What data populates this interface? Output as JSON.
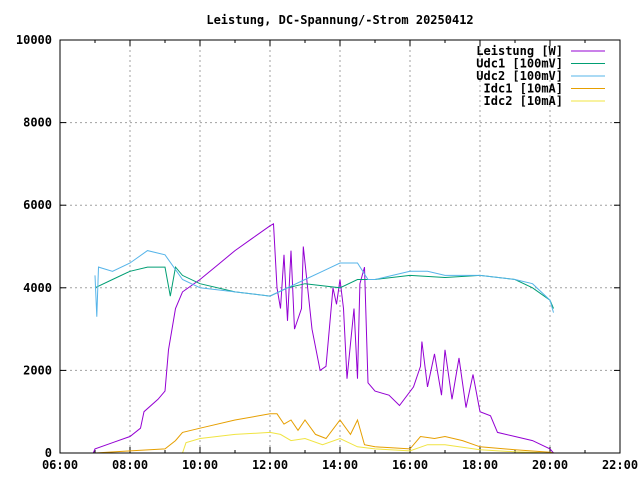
{
  "chart_data": {
    "type": "line",
    "title": "Leistung, DC-Spannung/-Strom 20250412",
    "xlabel": "",
    "ylabel": "",
    "xlim": [
      6,
      22
    ],
    "ylim": [
      0,
      10000
    ],
    "grid": true,
    "legend_position": "top-right",
    "x_ticks": [
      {
        "v": 6,
        "label": "06:00"
      },
      {
        "v": 8,
        "label": "08:00"
      },
      {
        "v": 10,
        "label": "10:00"
      },
      {
        "v": 12,
        "label": "12:00"
      },
      {
        "v": 14,
        "label": "14:00"
      },
      {
        "v": 16,
        "label": "16:00"
      },
      {
        "v": 18,
        "label": "18:00"
      },
      {
        "v": 20,
        "label": "20:00"
      },
      {
        "v": 22,
        "label": "22:00"
      }
    ],
    "y_ticks": [
      {
        "v": 0,
        "label": "0"
      },
      {
        "v": 2000,
        "label": "2000"
      },
      {
        "v": 4000,
        "label": "4000"
      },
      {
        "v": 6000,
        "label": "6000"
      },
      {
        "v": 8000,
        "label": "8000"
      },
      {
        "v": 10000,
        "label": "10000"
      }
    ],
    "series": [
      {
        "name": "Leistung [W]",
        "color": "#9400d3",
        "points": [
          [
            6.95,
            0
          ],
          [
            7.0,
            100
          ],
          [
            7.5,
            250
          ],
          [
            8.0,
            400
          ],
          [
            8.3,
            600
          ],
          [
            8.4,
            1000
          ],
          [
            8.8,
            1300
          ],
          [
            9.0,
            1500
          ],
          [
            9.1,
            2500
          ],
          [
            9.3,
            3500
          ],
          [
            9.5,
            3900
          ],
          [
            10,
            4200
          ],
          [
            10.5,
            4550
          ],
          [
            11,
            4900
          ],
          [
            11.5,
            5200
          ],
          [
            12,
            5500
          ],
          [
            12.1,
            5550
          ],
          [
            12.2,
            4000
          ],
          [
            12.3,
            3500
          ],
          [
            12.4,
            4800
          ],
          [
            12.5,
            3200
          ],
          [
            12.6,
            4900
          ],
          [
            12.7,
            3000
          ],
          [
            12.9,
            3500
          ],
          [
            12.95,
            5000
          ],
          [
            13.2,
            3000
          ],
          [
            13.43,
            2000
          ],
          [
            13.6,
            2100
          ],
          [
            13.8,
            4000
          ],
          [
            13.9,
            3600
          ],
          [
            14.0,
            4200
          ],
          [
            14.1,
            3500
          ],
          [
            14.2,
            1800
          ],
          [
            14.4,
            3500
          ],
          [
            14.5,
            1800
          ],
          [
            14.57,
            4100
          ],
          [
            14.7,
            4500
          ],
          [
            14.8,
            1700
          ],
          [
            15.0,
            1500
          ],
          [
            15.4,
            1400
          ],
          [
            15.7,
            1150
          ],
          [
            16.1,
            1600
          ],
          [
            16.3,
            2100
          ],
          [
            16.34,
            2700
          ],
          [
            16.5,
            1600
          ],
          [
            16.7,
            2400
          ],
          [
            16.9,
            1400
          ],
          [
            17.0,
            2500
          ],
          [
            17.2,
            1300
          ],
          [
            17.4,
            2300
          ],
          [
            17.6,
            1100
          ],
          [
            17.8,
            1900
          ],
          [
            18.0,
            1000
          ],
          [
            18.3,
            900
          ],
          [
            18.5,
            500
          ],
          [
            19,
            400
          ],
          [
            19.5,
            300
          ],
          [
            20,
            100
          ],
          [
            20.1,
            0
          ]
        ]
      },
      {
        "name": "Udc1 [100mV]",
        "color": "#009e73",
        "points": [
          [
            7.0,
            4000
          ],
          [
            7.5,
            4200
          ],
          [
            8,
            4400
          ],
          [
            8.5,
            4500
          ],
          [
            9,
            4500
          ],
          [
            9.15,
            3800
          ],
          [
            9.3,
            4500
          ],
          [
            9.5,
            4300
          ],
          [
            10,
            4100
          ],
          [
            11,
            3900
          ],
          [
            12,
            3800
          ],
          [
            12.5,
            4000
          ],
          [
            13,
            4100
          ],
          [
            13.5,
            4050
          ],
          [
            14,
            4000
          ],
          [
            14.5,
            4200
          ],
          [
            15,
            4200
          ],
          [
            16,
            4300
          ],
          [
            17,
            4250
          ],
          [
            18,
            4300
          ],
          [
            19,
            4200
          ],
          [
            19.5,
            4000
          ],
          [
            20,
            3700
          ],
          [
            20.1,
            3500
          ]
        ]
      },
      {
        "name": "Udc2 [100mV]",
        "color": "#56b4e9",
        "points": [
          [
            7.0,
            4300
          ],
          [
            7.05,
            3300
          ],
          [
            7.1,
            4500
          ],
          [
            7.5,
            4400
          ],
          [
            8,
            4600
          ],
          [
            8.5,
            4900
          ],
          [
            9,
            4800
          ],
          [
            9.5,
            4200
          ],
          [
            10,
            4000
          ],
          [
            11,
            3900
          ],
          [
            12,
            3800
          ],
          [
            12.5,
            4000
          ],
          [
            13,
            4200
          ],
          [
            13.5,
            4400
          ],
          [
            14,
            4600
          ],
          [
            14.5,
            4600
          ],
          [
            14.8,
            4200
          ],
          [
            15,
            4200
          ],
          [
            15.5,
            4300
          ],
          [
            16,
            4400
          ],
          [
            16.5,
            4400
          ],
          [
            17,
            4300
          ],
          [
            18,
            4300
          ],
          [
            19,
            4200
          ],
          [
            19.5,
            4100
          ],
          [
            20,
            3700
          ],
          [
            20.1,
            3400
          ]
        ]
      },
      {
        "name": "Idc1 [10mA]",
        "color": "#e69f00",
        "points": [
          [
            7,
            0
          ],
          [
            8,
            50
          ],
          [
            9,
            100
          ],
          [
            9.3,
            300
          ],
          [
            9.5,
            500
          ],
          [
            10,
            600
          ],
          [
            11,
            800
          ],
          [
            12,
            950
          ],
          [
            12.2,
            950
          ],
          [
            12.4,
            700
          ],
          [
            12.6,
            800
          ],
          [
            12.8,
            550
          ],
          [
            13,
            800
          ],
          [
            13.3,
            450
          ],
          [
            13.6,
            350
          ],
          [
            14,
            800
          ],
          [
            14.3,
            450
          ],
          [
            14.5,
            800
          ],
          [
            14.7,
            200
          ],
          [
            15,
            150
          ],
          [
            16,
            100
          ],
          [
            16.3,
            400
          ],
          [
            16.7,
            350
          ],
          [
            17,
            400
          ],
          [
            17.5,
            300
          ],
          [
            18,
            150
          ],
          [
            19,
            80
          ],
          [
            20,
            20
          ],
          [
            20.1,
            0
          ]
        ]
      },
      {
        "name": "Idc2 [10mA]",
        "color": "#f0e442",
        "points": [
          [
            7,
            0
          ],
          [
            9.5,
            0
          ],
          [
            9.6,
            250
          ],
          [
            10,
            350
          ],
          [
            11,
            450
          ],
          [
            12,
            500
          ],
          [
            12.3,
            450
          ],
          [
            12.6,
            300
          ],
          [
            13,
            350
          ],
          [
            13.5,
            200
          ],
          [
            14,
            350
          ],
          [
            14.5,
            150
          ],
          [
            15,
            100
          ],
          [
            16,
            50
          ],
          [
            16.5,
            200
          ],
          [
            17,
            200
          ],
          [
            18,
            80
          ],
          [
            19,
            30
          ],
          [
            20,
            0
          ]
        ]
      }
    ]
  }
}
